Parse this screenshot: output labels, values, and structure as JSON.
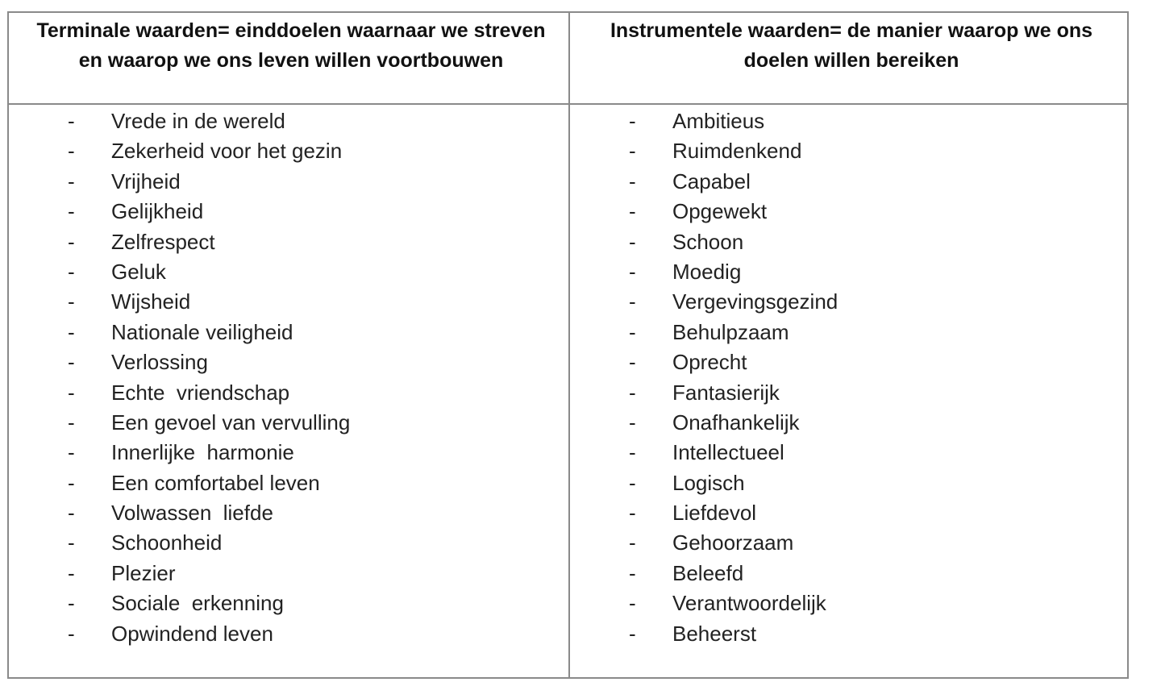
{
  "table": {
    "columns": [
      {
        "header": "Terminale waarden= einddoelen waarnaar we streven en waarop we ons leven willen voortbouwen",
        "items": [
          "Vrede in de wereld",
          "Zekerheid voor het gezin",
          "Vrijheid",
          "Gelijkheid",
          "Zelfrespect",
          "Geluk",
          "Wijsheid",
          "Nationale veiligheid",
          "Verlossing",
          "Echte  vriendschap",
          "Een gevoel van vervulling",
          "Innerlijke  harmonie",
          "Een comfortabel leven",
          "Volwassen  liefde",
          "Schoonheid",
          "Plezier",
          "Sociale  erkenning",
          "Opwindend leven"
        ]
      },
      {
        "header": "Instrumentele waarden= de manier waarop we ons doelen willen bereiken",
        "items": [
          "Ambitieus",
          "Ruimdenkend",
          "Capabel",
          "Opgewekt",
          "Schoon",
          "Moedig",
          "Vergevingsgezind",
          "Behulpzaam",
          "Oprecht",
          "Fantasierijk",
          "Onafhankelijk",
          "Intellectueel",
          "Logisch",
          "Liefdevol",
          "Gehoorzaam",
          "Beleefd",
          "Verantwoordelijk",
          "Beheerst"
        ]
      }
    ],
    "bullet": "-"
  }
}
